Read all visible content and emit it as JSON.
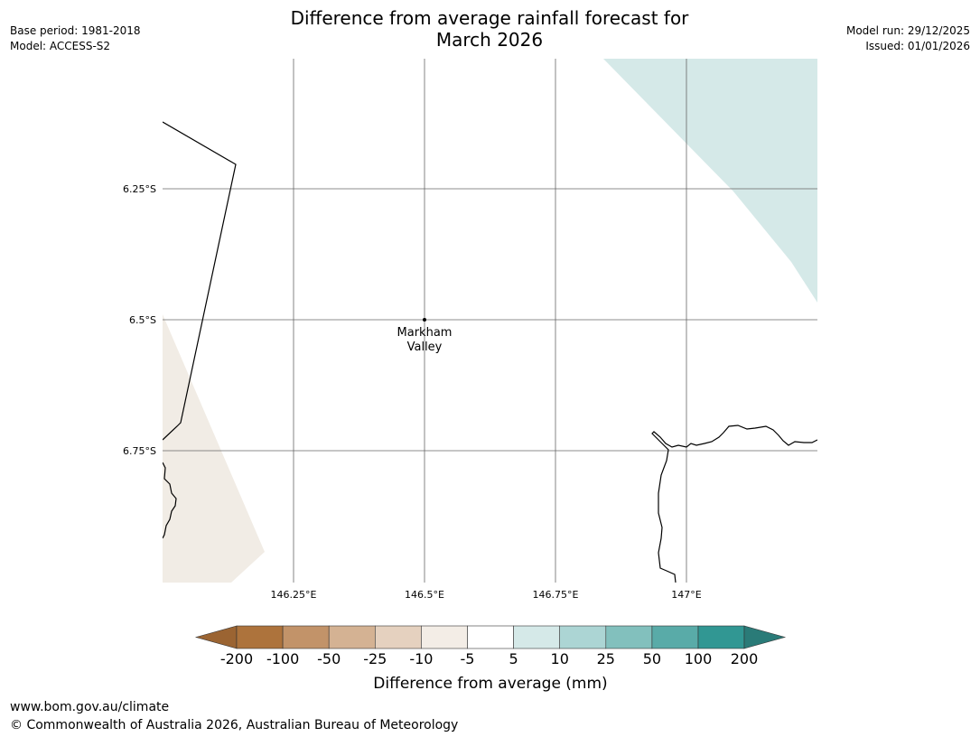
{
  "header": {
    "title_line1": "Difference from average rainfall forecast for",
    "title_line2": "March 2026",
    "base_period": "Base period: 1981-2018",
    "model": "Model: ACCESS-S2",
    "model_run": "Model run: 29/12/2025",
    "issued": "Issued: 01/01/2026"
  },
  "map": {
    "lat_labels": [
      "6.25°S",
      "6.5°S",
      "6.75°S"
    ],
    "lon_labels": [
      "146.25°E",
      "146.5°E",
      "146.75°E",
      "147°E"
    ],
    "place": {
      "name_line1": "Markham",
      "name_line2": "Valley",
      "lon": 146.5,
      "lat": -6.5
    },
    "regions": [
      {
        "category": "5 to 10",
        "color": "#d5e9e8"
      },
      {
        "category": "-10 to -5",
        "color": "#f1ece5"
      }
    ]
  },
  "colorbar": {
    "label": "Difference from average (mm)",
    "ticks": [
      "-200",
      "-100",
      "-50",
      "-25",
      "-10",
      "-5",
      "5",
      "10",
      "25",
      "50",
      "100",
      "200"
    ],
    "colors": {
      "lt_-200": "#9b6432",
      "-200_-100": "#ad733c",
      "-100_-50": "#c29369",
      "-50_-25": "#d4b293",
      "-25_-10": "#e5d1bf",
      "-10_-5": "#f3ede6",
      "-5_5": "#ffffff",
      "5_10": "#d5e9e8",
      "10_25": "#acd5d4",
      "25_50": "#82c0bd",
      "50_100": "#59aba8",
      "100_200": "#319793",
      "gt_200": "#2a7b78"
    }
  },
  "footer": {
    "url": "www.bom.gov.au/climate",
    "copyright": "© Commonwealth of Australia 2026, Australian Bureau of Meteorology"
  }
}
